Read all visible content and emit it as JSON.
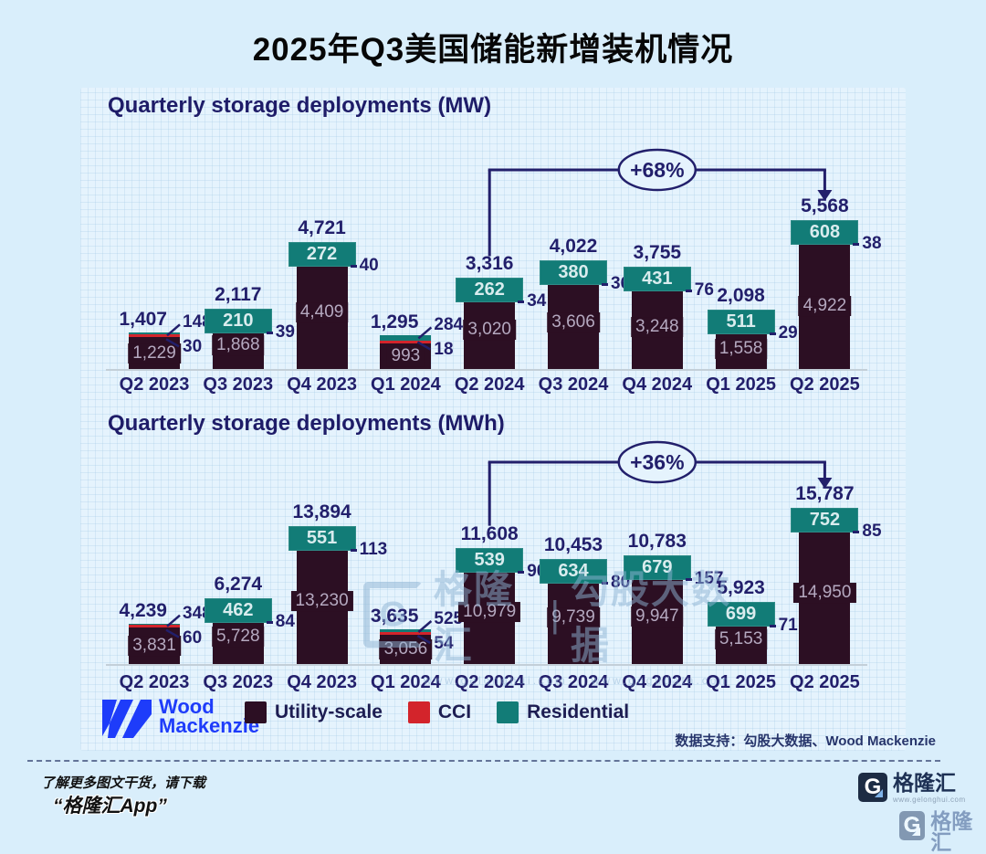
{
  "page": {
    "title": "2025年Q3美国储能新增装机情况",
    "source_note": "数据支持：勾股大数据、Wood Mackenzie",
    "footer": {
      "line1": "了解更多图文干货，请下载",
      "line2": "“格隆汇App”"
    }
  },
  "colors": {
    "utility": "#2c0f23",
    "cci": "#d3242b",
    "residential": "#127c77",
    "navy": "#221f6b",
    "wm_blue": "#1e3cfa",
    "panel_bg": "#e5f3fd"
  },
  "legend": {
    "items": [
      {
        "label": "Utility-scale",
        "color": "#2c0f23"
      },
      {
        "label": "CCI",
        "color": "#d3242b"
      },
      {
        "label": "Residential",
        "color": "#127c77"
      }
    ]
  },
  "brand_left": {
    "line1": "Wood",
    "line2": "Mackenzie"
  },
  "glh_logo": {
    "letter": "G",
    "text": "格隆汇",
    "url": "www.gelonghui.com"
  },
  "watermark": {
    "letter": "G",
    "brand": "格隆汇",
    "pipe": "|",
    "brand2": "勾股大数据",
    "url1": "www.gelonghui.com",
    "url2": "www.gogudata.com"
  },
  "chart_data": [
    {
      "type": "bar",
      "stacked": true,
      "title": "Quarterly storage deployments (MW)",
      "unit": "MW",
      "categories": [
        "Q2 2023",
        "Q3 2023",
        "Q4 2023",
        "Q1 2024",
        "Q2 2024",
        "Q3 2024",
        "Q4 2024",
        "Q1 2025",
        "Q2 2025"
      ],
      "series": [
        {
          "name": "Utility-scale",
          "values": [
            1229,
            1868,
            4409,
            993,
            3020,
            3606,
            3248,
            1558,
            4922
          ]
        },
        {
          "name": "CCI",
          "values": [
            30,
            39,
            40,
            18,
            34,
            36,
            76,
            29,
            38
          ]
        },
        {
          "name": "Residential",
          "values": [
            148,
            210,
            272,
            284,
            262,
            380,
            431,
            511,
            608
          ]
        }
      ],
      "totals": [
        1407,
        2117,
        4721,
        1295,
        3316,
        4022,
        3755,
        2098,
        5568
      ],
      "annotation": {
        "label": "+68%",
        "from": "Q2 2024",
        "to": "Q2 2025"
      },
      "outside_label_indices": [
        0,
        3
      ],
      "legend_position": "bottom",
      "grid": true
    },
    {
      "type": "bar",
      "stacked": true,
      "title": "Quarterly storage deployments (MWh)",
      "unit": "MWh",
      "categories": [
        "Q2 2023",
        "Q3 2023",
        "Q4 2023",
        "Q1 2024",
        "Q2 2024",
        "Q3 2024",
        "Q4 2024",
        "Q1 2025",
        "Q2 2025"
      ],
      "series": [
        {
          "name": "Utility-scale",
          "values": [
            3831,
            5728,
            13230,
            3056,
            10979,
            9739,
            9947,
            5153,
            14950
          ]
        },
        {
          "name": "CCI",
          "values": [
            60,
            84,
            113,
            54,
            90,
            80,
            157,
            71,
            85
          ]
        },
        {
          "name": "Residential",
          "values": [
            348,
            462,
            551,
            525,
            539,
            634,
            679,
            699,
            752
          ]
        }
      ],
      "totals": [
        4239,
        6274,
        13894,
        3635,
        11608,
        10453,
        10783,
        5923,
        15787
      ],
      "annotation": {
        "label": "+36%",
        "from": "Q2 2024",
        "to": "Q2 2025"
      },
      "outside_label_indices": [
        0,
        3
      ],
      "legend_position": "bottom",
      "grid": true
    }
  ]
}
